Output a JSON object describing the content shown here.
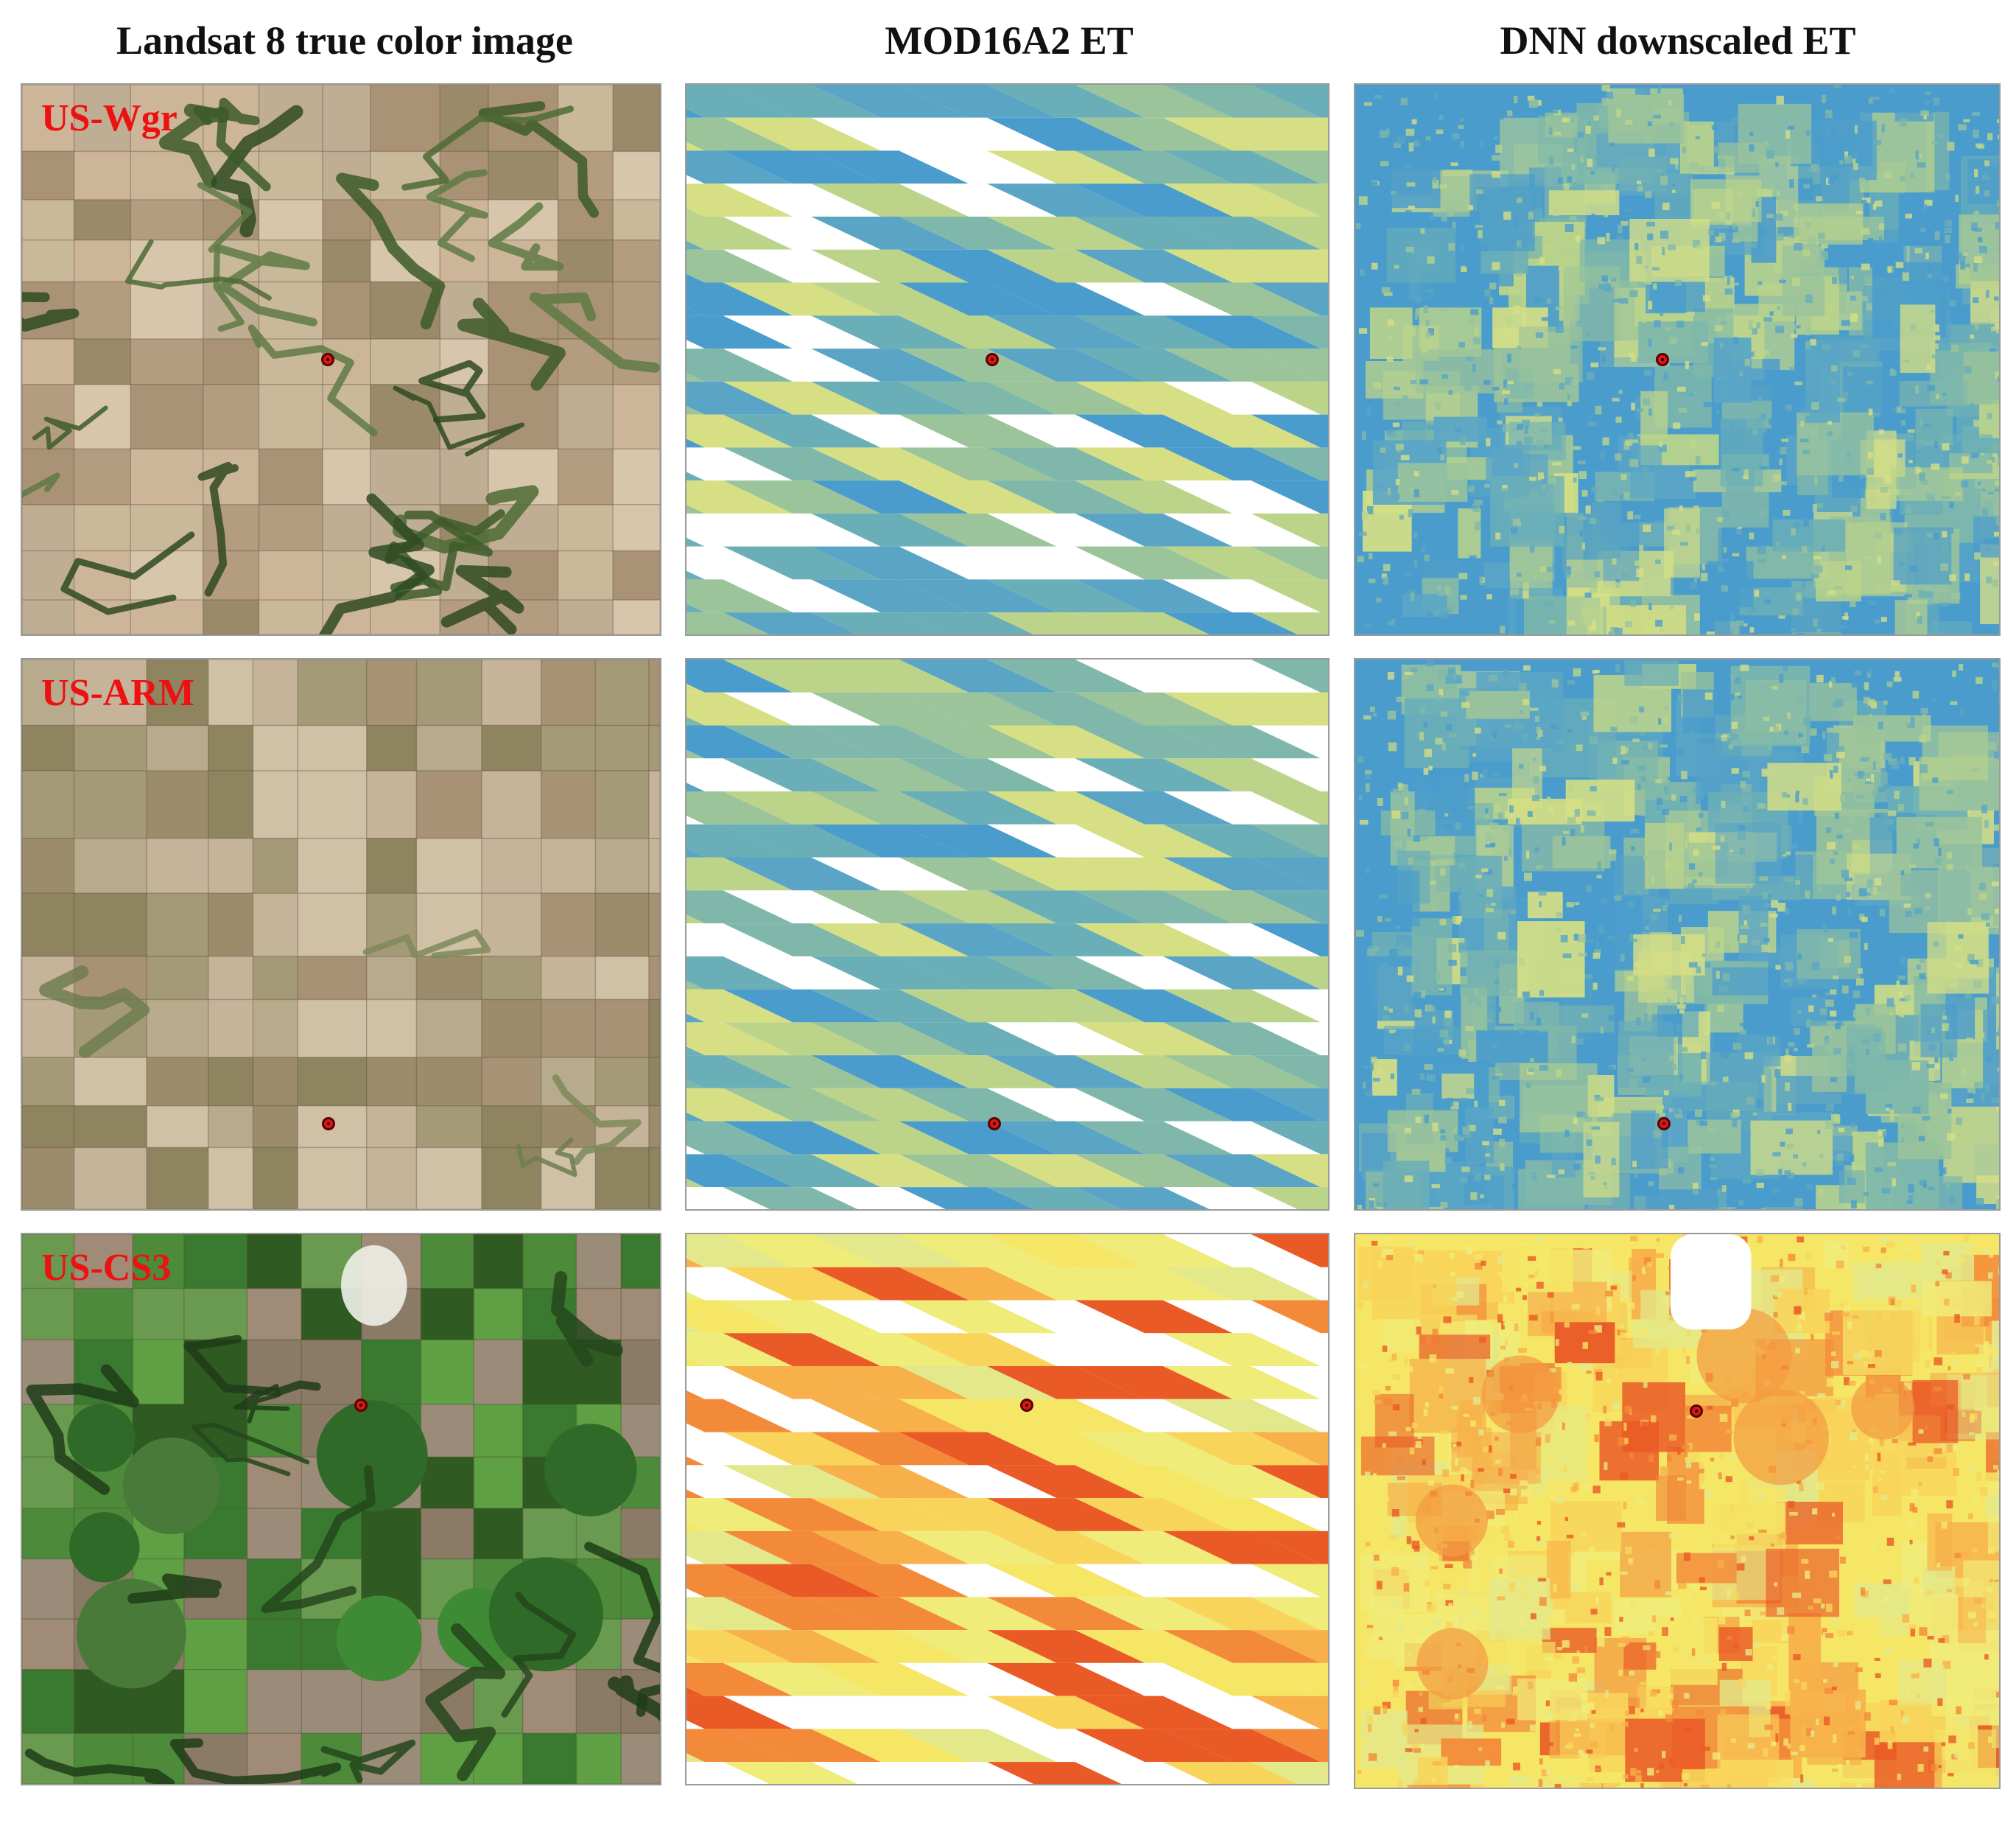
{
  "figure": {
    "columns": [
      {
        "id": "landsat",
        "title": "Landsat 8 true color image"
      },
      {
        "id": "modis",
        "title": "MOD16A2 ET"
      },
      {
        "id": "dnn",
        "title": "DNN downscaled ET"
      }
    ],
    "sites": [
      {
        "id": "wgr",
        "label": "US-Wgr",
        "theme": "cool",
        "landsat_theme": "crop-brown"
      },
      {
        "id": "arm",
        "label": "US-ARM",
        "theme": "cool",
        "landsat_theme": "grass-tan"
      },
      {
        "id": "cs3",
        "label": "US-CS3",
        "theme": "warm",
        "landsat_theme": "crop-green"
      }
    ],
    "colors": {
      "site_label": "#ee1111",
      "tower_marker": "#d81818",
      "et_low": "#4a9ccc",
      "et_mid": "#f5ea6a",
      "et_high": "#e8401a"
    }
  }
}
